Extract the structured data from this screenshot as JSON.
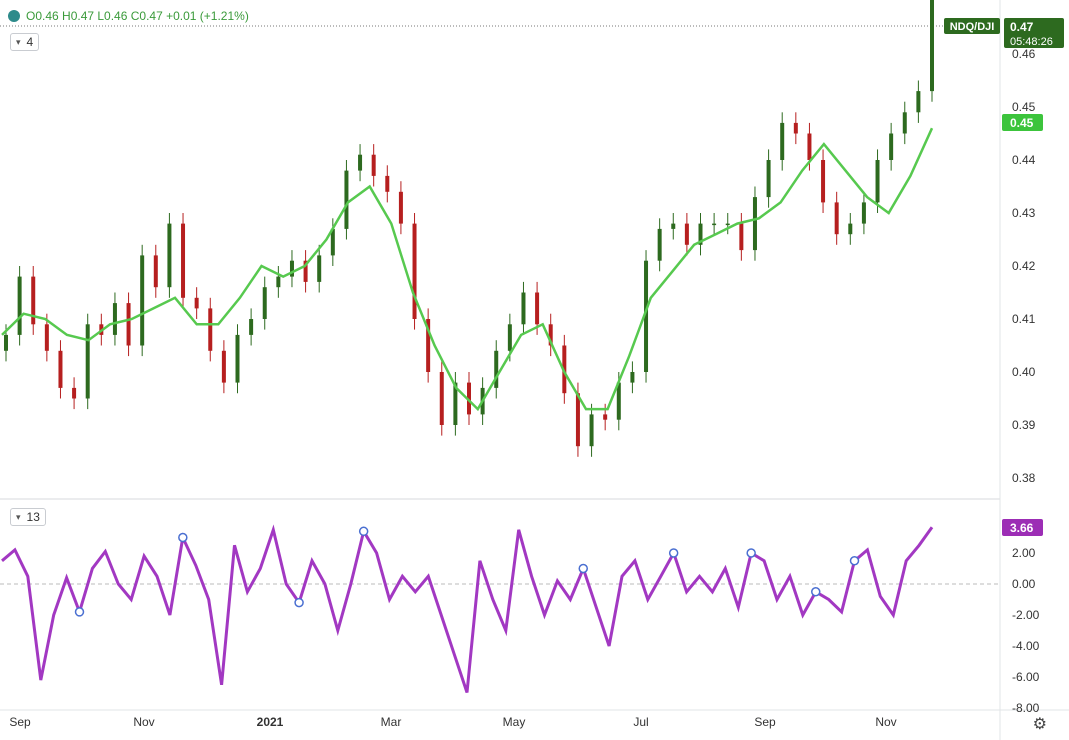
{
  "legend": {
    "symbol_dot_color": "#2e8b8b",
    "text": "O0.46 H0.47 L0.46 C0.47 +0.01 (+1.21%)"
  },
  "price_study": {
    "label": "4"
  },
  "osc_study": {
    "label": "13"
  },
  "price_tag": {
    "symbol": "NDQ/DJI",
    "value": "0.47",
    "countdown": "05:48:26",
    "bg": "#2d6a1f"
  },
  "ma_tag": {
    "value": "0.45",
    "bg": "#3cc43c"
  },
  "osc_tag": {
    "value": "3.66",
    "bg": "#9c2db5"
  },
  "colors": {
    "up": "#2d6a1f",
    "down": "#b61f1f",
    "ma": "#57c94f",
    "osc": "#a238c2",
    "marker": "#4a6fd1"
  },
  "chart_data": [
    {
      "type": "candlestick",
      "title": "NDQ/DJI",
      "y_ticks": [
        "0.46",
        "0.45",
        "0.44",
        "0.43",
        "0.42",
        "0.41",
        "0.40",
        "0.39",
        "0.38"
      ],
      "x_ticks": [
        "Sep",
        "Nov",
        "2021",
        "Mar",
        "May",
        "Jul",
        "Sep",
        "Nov"
      ],
      "ylim": [
        0.376,
        0.472
      ],
      "series": [
        {
          "name": "4",
          "type": "line",
          "values": [
            0.407,
            0.411,
            0.41,
            0.407,
            0.406,
            0.409,
            0.41,
            0.412,
            0.414,
            0.409,
            0.409,
            0.414,
            0.42,
            0.418,
            0.42,
            0.425,
            0.432,
            0.435,
            0.428,
            0.415,
            0.405,
            0.397,
            0.393,
            0.4,
            0.407,
            0.409,
            0.4,
            0.393,
            0.393,
            0.403,
            0.414,
            0.419,
            0.424,
            0.426,
            0.428,
            0.429,
            0.432,
            0.438,
            0.443,
            0.438,
            0.433,
            0.43,
            0.437,
            0.446
          ]
        }
      ],
      "candles_close": [
        0.407,
        0.418,
        0.409,
        0.404,
        0.397,
        0.395,
        0.409,
        0.407,
        0.413,
        0.405,
        0.422,
        0.416,
        0.428,
        0.414,
        0.412,
        0.404,
        0.398,
        0.407,
        0.41,
        0.416,
        0.418,
        0.421,
        0.417,
        0.422,
        0.427,
        0.438,
        0.441,
        0.437,
        0.434,
        0.428,
        0.41,
        0.4,
        0.39,
        0.398,
        0.392,
        0.397,
        0.404,
        0.409,
        0.415,
        0.409,
        0.405,
        0.396,
        0.386,
        0.392,
        0.391,
        0.398,
        0.4,
        0.421,
        0.427,
        0.428,
        0.424,
        0.428,
        0.428,
        0.428,
        0.423,
        0.433,
        0.44,
        0.447,
        0.445,
        0.44,
        0.432,
        0.426,
        0.428,
        0.432,
        0.44,
        0.445,
        0.449,
        0.453,
        0.471
      ]
    },
    {
      "type": "line",
      "series_name": "13",
      "y_ticks": [
        "2.00",
        "0.00",
        "-2.00",
        "-4.00",
        "-6.00",
        "-8.00"
      ],
      "ylim": [
        -8.5,
        4.5
      ],
      "values": [
        1.5,
        2.2,
        0.5,
        -6.2,
        -2.0,
        0.4,
        -1.8,
        1.0,
        2.1,
        0.0,
        -1.0,
        1.8,
        0.5,
        -2.0,
        3.0,
        1.2,
        -1.0,
        -6.5,
        2.5,
        -0.5,
        1.0,
        3.5,
        0.0,
        -1.2,
        1.5,
        0.0,
        -3.0,
        0.0,
        3.4,
        2.0,
        -1.0,
        0.5,
        -0.5,
        0.5,
        -2.0,
        -4.5,
        -7.0,
        1.5,
        -1.0,
        -3.0,
        3.5,
        0.5,
        -2.0,
        0.2,
        -1.0,
        1.0,
        -1.5,
        -4.0,
        0.5,
        1.5,
        -1.0,
        0.5,
        2.0,
        -0.5,
        0.5,
        -0.5,
        1.0,
        -1.5,
        2.0,
        1.5,
        -1.0,
        0.5,
        -2.0,
        -0.5,
        -1.0,
        -1.8,
        1.5,
        2.2,
        -0.8,
        -2.0,
        1.5,
        2.5,
        3.66
      ],
      "marker_indices": [
        6,
        14,
        23,
        28,
        45,
        52,
        58,
        63,
        66,
        80,
        86
      ]
    }
  ]
}
